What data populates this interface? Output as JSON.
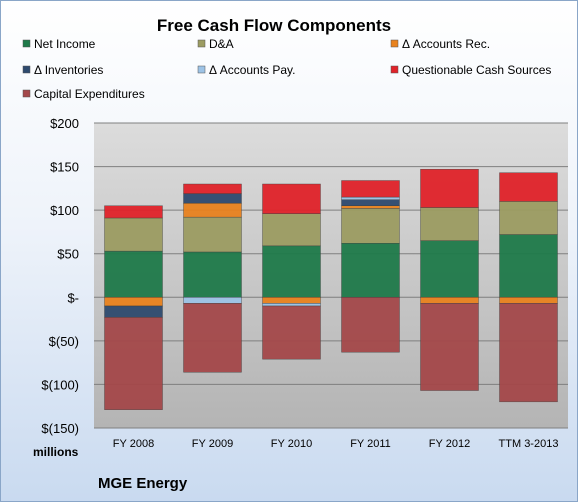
{
  "chart_data": {
    "type": "bar",
    "stacked": true,
    "title": "Free Cash Flow Components",
    "units_label": "millions",
    "company": "MGE Energy",
    "categories": [
      "FY 2008",
      "FY 2009",
      "FY 2010",
      "FY 2011",
      "FY 2012",
      "TTM 3-2013"
    ],
    "ylim": [
      -150,
      200
    ],
    "yticks": [
      {
        "value": 200,
        "label": "$200"
      },
      {
        "value": 150,
        "label": "$150"
      },
      {
        "value": 100,
        "label": "$100"
      },
      {
        "value": 50,
        "label": "$50"
      },
      {
        "value": 0,
        "label": "$-"
      },
      {
        "value": -50,
        "label": "$(50)"
      },
      {
        "value": -100,
        "label": "$(100)"
      },
      {
        "value": -150,
        "label": "$(150)"
      }
    ],
    "grid": true,
    "legend_position": "top",
    "series": [
      {
        "name": "Net Income",
        "color": "#1f7a4a",
        "values": [
          53,
          52,
          59,
          62,
          65,
          72
        ]
      },
      {
        "name": "D&A",
        "color": "#9c9c62",
        "values": [
          38,
          40,
          37,
          40,
          38,
          38
        ]
      },
      {
        "name": "Δ Accounts Rec.",
        "color": "#e8821e",
        "values": [
          -10,
          16,
          -7,
          3,
          -7,
          -7
        ]
      },
      {
        "name": "Δ Inventories",
        "color": "#2e4a6e",
        "values": [
          -13,
          11,
          0,
          7,
          0,
          0
        ]
      },
      {
        "name": "Δ Accounts Pay.",
        "color": "#9dc3e6",
        "values": [
          0,
          -7,
          -3,
          3,
          0,
          0
        ]
      },
      {
        "name": "Questionable Cash Sources",
        "color": "#e0232a",
        "values": [
          14,
          11,
          34,
          19,
          44,
          33
        ]
      },
      {
        "name": "Capital Expenditures",
        "color": "#a4484a",
        "values": [
          -106,
          -79,
          -61,
          -63,
          -100,
          -113
        ]
      }
    ]
  }
}
